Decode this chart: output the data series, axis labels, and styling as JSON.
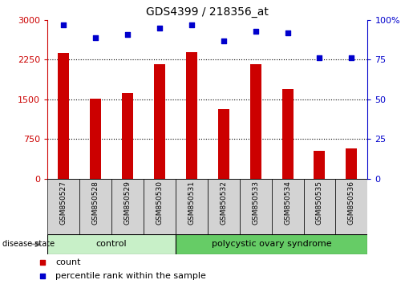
{
  "title": "GDS4399 / 218356_at",
  "samples": [
    "GSM850527",
    "GSM850528",
    "GSM850529",
    "GSM850530",
    "GSM850531",
    "GSM850532",
    "GSM850533",
    "GSM850534",
    "GSM850535",
    "GSM850536"
  ],
  "counts": [
    2380,
    1520,
    1620,
    2160,
    2390,
    1320,
    2160,
    1700,
    530,
    570
  ],
  "percentiles": [
    97,
    89,
    91,
    95,
    97,
    87,
    93,
    92,
    76,
    76
  ],
  "ylim_left": [
    0,
    3000
  ],
  "ylim_right": [
    0,
    100
  ],
  "yticks_left": [
    0,
    750,
    1500,
    2250,
    3000
  ],
  "yticks_right": [
    0,
    25,
    50,
    75,
    100
  ],
  "bar_color": "#cc0000",
  "dot_color": "#0000cc",
  "control_color": "#c8f0c8",
  "pcos_color": "#66cc66",
  "label_bg_color": "#d3d3d3",
  "control_samples": 4,
  "control_label": "control",
  "pcos_label": "polycystic ovary syndrome",
  "disease_state_label": "disease state",
  "legend_count_label": "count",
  "legend_percentile_label": "percentile rank within the sample",
  "bar_width": 0.35,
  "fig_width": 5.15,
  "fig_height": 3.54,
  "dpi": 100
}
